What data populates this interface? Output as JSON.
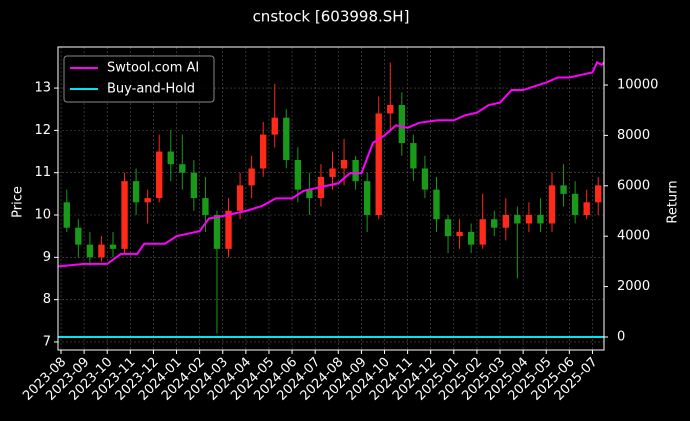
{
  "chart_data": {
    "type": "candlestick",
    "title": "cnstock [603998.SH]",
    "ylabel": "Price",
    "y2label": "Return",
    "grid": true,
    "legend": "upper left",
    "up_color": "#ff2a1a",
    "down_color": "#1a9a1a",
    "xlim": [
      -0.13,
      23.5
    ],
    "xticks": [
      {
        "value": 0,
        "label": "2023-08"
      },
      {
        "value": 1,
        "label": "2023-09"
      },
      {
        "value": 2,
        "label": "2023-10"
      },
      {
        "value": 3,
        "label": "2023-11"
      },
      {
        "value": 4,
        "label": "2023-12"
      },
      {
        "value": 5,
        "label": "2024-01"
      },
      {
        "value": 6,
        "label": "2024-02"
      },
      {
        "value": 7,
        "label": "2024-03"
      },
      {
        "value": 8,
        "label": "2024-04"
      },
      {
        "value": 9,
        "label": "2024-05"
      },
      {
        "value": 10,
        "label": "2024-06"
      },
      {
        "value": 11,
        "label": "2024-07"
      },
      {
        "value": 12,
        "label": "2024-08"
      },
      {
        "value": 13,
        "label": "2024-09"
      },
      {
        "value": 14,
        "label": "2024-10"
      },
      {
        "value": 15,
        "label": "2024-11"
      },
      {
        "value": 16,
        "label": "2024-12"
      },
      {
        "value": 17,
        "label": "2025-01"
      },
      {
        "value": 18,
        "label": "2025-02"
      },
      {
        "value": 19,
        "label": "2025-03"
      },
      {
        "value": 20,
        "label": "2025-04"
      },
      {
        "value": 21,
        "label": "2025-05"
      },
      {
        "value": 22,
        "label": "2025-06"
      },
      {
        "value": 23,
        "label": "2025-07"
      }
    ],
    "ylim": [
      6.81,
      13.97
    ],
    "yticks": [
      7,
      8,
      9,
      10,
      11,
      12,
      13
    ],
    "y2lim": [
      -516,
      11508
    ],
    "y2ticks": [
      0,
      2000,
      4000,
      6000,
      8000,
      10000
    ],
    "candles": {
      "x": [
        0.25,
        0.75,
        1.25,
        1.75,
        2.25,
        2.75,
        3.25,
        3.75,
        4.25,
        4.75,
        5.25,
        5.75,
        6.25,
        6.75,
        7.25,
        7.75,
        8.25,
        8.75,
        9.25,
        9.75,
        10.25,
        10.75,
        11.25,
        11.75,
        12.25,
        12.75,
        13.25,
        13.75,
        14.25,
        14.75,
        15.25,
        15.75,
        16.25,
        16.75,
        17.25,
        17.75,
        18.25,
        18.75,
        19.25,
        19.75,
        20.25,
        20.75,
        21.25,
        21.75,
        22.25,
        22.75,
        23.25
      ],
      "open": [
        10.3,
        9.7,
        9.3,
        9.0,
        9.3,
        9.2,
        10.8,
        10.3,
        10.4,
        11.5,
        11.2,
        11.0,
        10.4,
        10.0,
        9.2,
        10.1,
        10.7,
        11.1,
        11.9,
        12.3,
        11.3,
        10.6,
        10.4,
        10.9,
        11.1,
        11.3,
        10.8,
        10.0,
        12.4,
        12.6,
        11.7,
        11.1,
        10.6,
        9.9,
        9.5,
        9.6,
        9.3,
        9.9,
        9.7,
        10.0,
        9.8,
        10.0,
        9.8,
        10.7,
        10.5,
        10.0,
        10.3
      ],
      "high": [
        10.6,
        9.9,
        9.6,
        9.5,
        9.6,
        11.0,
        11.1,
        10.6,
        11.9,
        12.0,
        11.9,
        11.3,
        10.9,
        10.1,
        10.4,
        11.0,
        11.4,
        12.2,
        13.1,
        12.5,
        11.6,
        11.0,
        11.2,
        11.5,
        11.8,
        11.4,
        11.0,
        12.8,
        13.6,
        12.9,
        11.9,
        11.4,
        10.9,
        10.0,
        9.9,
        9.8,
        10.5,
        10.1,
        10.4,
        10.2,
        10.3,
        10.4,
        11.0,
        11.2,
        10.8,
        10.6,
        10.9
      ],
      "low": [
        9.6,
        9.0,
        8.8,
        8.9,
        9.0,
        9.1,
        10.0,
        9.8,
        10.3,
        10.8,
        10.6,
        10.1,
        9.6,
        7.2,
        9.0,
        9.9,
        10.4,
        10.9,
        11.6,
        11.1,
        10.3,
        10.0,
        10.2,
        10.6,
        10.7,
        10.6,
        9.6,
        9.9,
        12.0,
        11.4,
        10.8,
        10.4,
        9.6,
        9.1,
        9.2,
        9.1,
        9.2,
        9.5,
        9.4,
        8.5,
        9.6,
        9.6,
        9.6,
        10.2,
        9.8,
        9.9,
        10.0
      ],
      "close": [
        9.7,
        9.3,
        9.0,
        9.3,
        9.2,
        10.8,
        10.3,
        10.4,
        11.5,
        11.2,
        11.0,
        10.4,
        10.0,
        9.2,
        10.1,
        10.7,
        11.1,
        11.9,
        12.3,
        11.3,
        10.6,
        10.4,
        10.9,
        11.1,
        11.3,
        10.8,
        10.0,
        12.4,
        12.6,
        11.7,
        11.1,
        10.6,
        9.9,
        9.5,
        9.6,
        9.3,
        9.9,
        9.7,
        10.0,
        9.8,
        10.0,
        9.8,
        10.7,
        10.5,
        10.0,
        10.3,
        10.7
      ]
    },
    "series": [
      {
        "name": "Swtool.com AI",
        "color": "#ff00ff",
        "axis": "y2",
        "x": [
          -0.13,
          1,
          2,
          2.6,
          3.3,
          3.6,
          4.5,
          5,
          6,
          6.4,
          7,
          8,
          8.7,
          9.3,
          10,
          10.5,
          11,
          12,
          12.5,
          13,
          13.5,
          14,
          14.5,
          15,
          15.5,
          16.3,
          17,
          17.5,
          18,
          18.5,
          19,
          19.5,
          20,
          21,
          21.5,
          22,
          22.5,
          23,
          23.2,
          23.4,
          23.5
        ],
        "values": [
          2800,
          2900,
          2900,
          3300,
          3300,
          3700,
          3700,
          4000,
          4200,
          4700,
          4800,
          5000,
          5200,
          5500,
          5500,
          5800,
          5900,
          6100,
          6500,
          6500,
          7700,
          8000,
          8400,
          8300,
          8500,
          8600,
          8600,
          8800,
          8900,
          9200,
          9300,
          9800,
          9800,
          10100,
          10300,
          10300,
          10400,
          10500,
          10900,
          10800,
          10900
        ]
      },
      {
        "name": "Buy-and-Hold",
        "color": "#00e5ee",
        "axis": "y2",
        "x": [
          -0.13,
          23.5
        ],
        "values": [
          0,
          0
        ]
      }
    ]
  }
}
